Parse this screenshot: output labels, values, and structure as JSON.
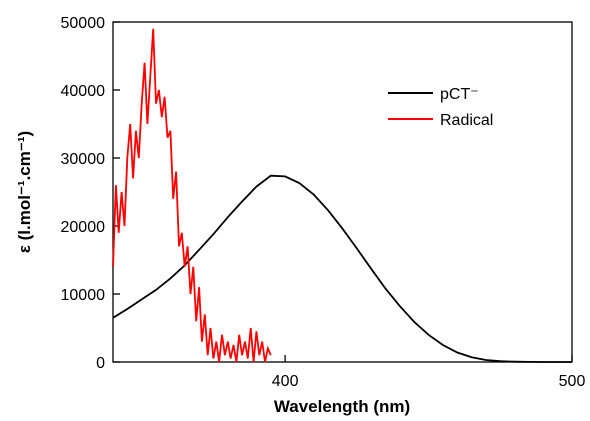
{
  "chart_data": {
    "type": "line",
    "x_label": "Wavelength (nm)",
    "y_label": "ε (l.mol⁻¹.cm⁻¹)",
    "xlim": [
      340,
      500
    ],
    "xticks": [
      400,
      500
    ],
    "ylim": [
      0,
      50000
    ],
    "yticks": [
      0,
      10000,
      20000,
      30000,
      40000,
      50000
    ],
    "legend": "upper right",
    "series": [
      {
        "name": "pCT⁻",
        "color": "#000000",
        "x": [
          340,
          345,
          350,
          355,
          360,
          365,
          370,
          375,
          380,
          385,
          390,
          395,
          400,
          405,
          410,
          415,
          420,
          425,
          430,
          435,
          440,
          445,
          450,
          455,
          460,
          465,
          470,
          475,
          480,
          485,
          490,
          500
        ],
        "values": [
          6500,
          7800,
          9200,
          10600,
          12300,
          14200,
          16500,
          18800,
          21300,
          23600,
          25800,
          27400,
          27300,
          26300,
          24600,
          22300,
          19600,
          16700,
          13700,
          10800,
          8200,
          5900,
          4000,
          2500,
          1400,
          700,
          300,
          120,
          40,
          10,
          0,
          0
        ]
      },
      {
        "name": "Radical",
        "color": "#ff0000",
        "x": [
          340,
          341,
          342,
          343,
          344,
          345,
          346,
          347,
          348,
          349,
          350,
          351,
          352,
          353,
          354,
          355,
          356,
          357,
          358,
          359,
          360,
          361,
          362,
          363,
          364,
          365,
          366,
          367,
          368,
          369,
          370,
          371,
          372,
          373,
          374,
          375,
          376,
          377,
          378,
          379,
          380,
          381,
          382,
          383,
          384,
          385,
          386,
          387,
          388,
          389,
          390,
          391,
          392,
          393,
          394,
          395
        ],
        "values": [
          14000,
          26000,
          19000,
          25000,
          20000,
          30000,
          35000,
          27000,
          34000,
          30000,
          38000,
          44000,
          35000,
          42000,
          49000,
          38000,
          40000,
          36000,
          39000,
          33000,
          34000,
          24000,
          28000,
          17000,
          19000,
          14000,
          17000,
          10000,
          14000,
          6000,
          11000,
          3000,
          7000,
          1000,
          5000,
          500,
          3000,
          0,
          4000,
          1000,
          3000,
          500,
          2500,
          0,
          4000,
          1000,
          3000,
          500,
          5000,
          0,
          4500,
          1000,
          3000,
          0,
          2000,
          1000
        ]
      }
    ]
  }
}
